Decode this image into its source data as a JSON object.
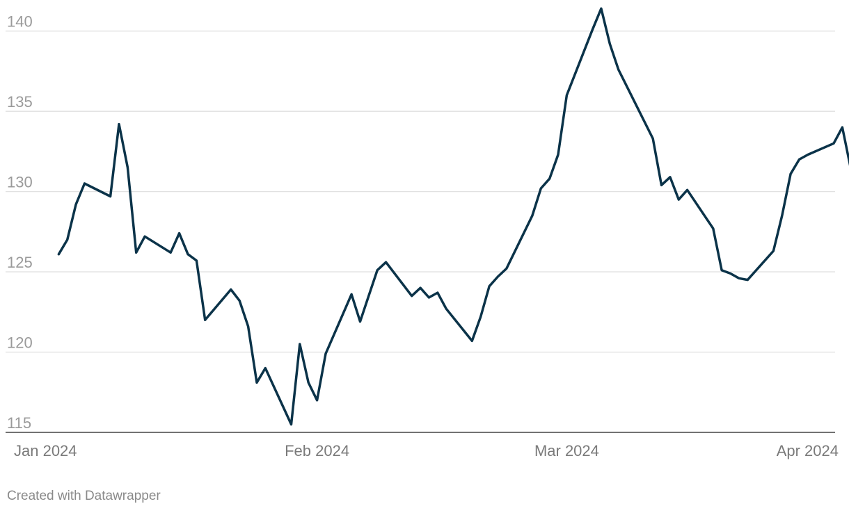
{
  "chart_data": {
    "type": "line",
    "title": "",
    "xlabel": "",
    "ylabel": "",
    "ylim": [
      115,
      141.5
    ],
    "y_ticks": [
      115,
      120,
      125,
      130,
      135,
      140
    ],
    "x_ticks": [
      {
        "date": "2024-01-01",
        "label": "Jan 2024"
      },
      {
        "date": "2024-02-01",
        "label": "Feb 2024"
      },
      {
        "date": "2024-03-01",
        "label": "Mar 2024"
      },
      {
        "date": "2024-04-01",
        "label": "Apr 2024"
      }
    ],
    "xlim": [
      "2024-01-01",
      "2024-04-01"
    ],
    "grid": true,
    "series": [
      {
        "color": "#0b3349",
        "points": [
          [
            "2024-01-02",
            126.1
          ],
          [
            "2024-01-03",
            127.0
          ],
          [
            "2024-01-04",
            129.2
          ],
          [
            "2024-01-05",
            130.5
          ],
          [
            "2024-01-08",
            129.7
          ],
          [
            "2024-01-09",
            134.2
          ],
          [
            "2024-01-10",
            131.5
          ],
          [
            "2024-01-11",
            126.2
          ],
          [
            "2024-01-12",
            127.2
          ],
          [
            "2024-01-15",
            126.2
          ],
          [
            "2024-01-16",
            127.4
          ],
          [
            "2024-01-17",
            126.1
          ],
          [
            "2024-01-18",
            125.7
          ],
          [
            "2024-01-19",
            122.0
          ],
          [
            "2024-01-22",
            123.9
          ],
          [
            "2024-01-23",
            123.2
          ],
          [
            "2024-01-24",
            121.6
          ],
          [
            "2024-01-25",
            118.1
          ],
          [
            "2024-01-26",
            119.0
          ],
          [
            "2024-01-29",
            115.5
          ],
          [
            "2024-01-30",
            120.5
          ],
          [
            "2024-01-31",
            118.1
          ],
          [
            "2024-02-01",
            117.0
          ],
          [
            "2024-02-02",
            119.9
          ],
          [
            "2024-02-05",
            123.6
          ],
          [
            "2024-02-06",
            121.9
          ],
          [
            "2024-02-07",
            123.5
          ],
          [
            "2024-02-08",
            125.1
          ],
          [
            "2024-02-09",
            125.6
          ],
          [
            "2024-02-12",
            123.5
          ],
          [
            "2024-02-13",
            124.0
          ],
          [
            "2024-02-14",
            123.4
          ],
          [
            "2024-02-15",
            123.7
          ],
          [
            "2024-02-16",
            122.7
          ],
          [
            "2024-02-19",
            120.7
          ],
          [
            "2024-02-20",
            122.2
          ],
          [
            "2024-02-21",
            124.1
          ],
          [
            "2024-02-22",
            124.7
          ],
          [
            "2024-02-23",
            125.2
          ],
          [
            "2024-02-26",
            128.5
          ],
          [
            "2024-02-27",
            130.2
          ],
          [
            "2024-02-28",
            130.8
          ],
          [
            "2024-02-29",
            132.3
          ],
          [
            "2024-03-01",
            136.0
          ],
          [
            "2024-03-04",
            140.1
          ],
          [
            "2024-03-05",
            141.4
          ],
          [
            "2024-03-06",
            139.2
          ],
          [
            "2024-03-07",
            137.6
          ],
          [
            "2024-03-11",
            133.3
          ],
          [
            "2024-03-12",
            130.4
          ],
          [
            "2024-03-13",
            130.9
          ],
          [
            "2024-03-14",
            129.5
          ],
          [
            "2024-03-15",
            130.1
          ],
          [
            "2024-03-18",
            127.7
          ],
          [
            "2024-03-19",
            125.1
          ],
          [
            "2024-03-20",
            124.9
          ],
          [
            "2024-03-21",
            124.6
          ],
          [
            "2024-03-22",
            124.5
          ],
          [
            "2024-03-25",
            126.3
          ],
          [
            "2024-03-26",
            128.5
          ],
          [
            "2024-03-27",
            131.1
          ],
          [
            "2024-03-28",
            132.0
          ],
          [
            "2024-03-29",
            132.3
          ],
          [
            "2024-04-01",
            133.0
          ],
          [
            "2024-04-02",
            134.0
          ],
          [
            "2024-04-03",
            131.4
          ]
        ]
      }
    ]
  },
  "footer": {
    "credit": "Created with Datawrapper"
  }
}
